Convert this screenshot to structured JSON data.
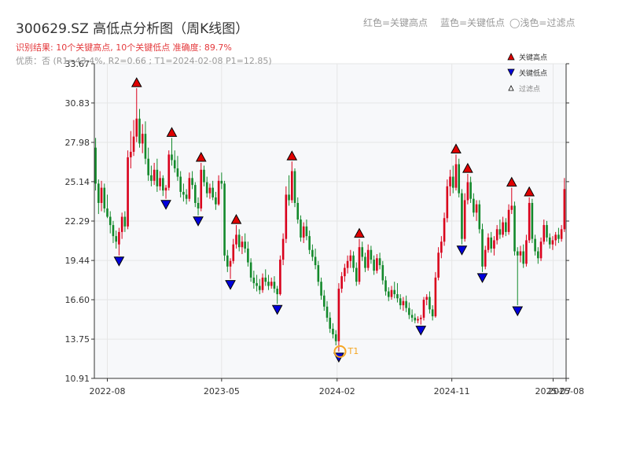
{
  "header": {
    "title": "300629.SZ 高低点分析图（周K线图）",
    "legend_red": "红色=关键高点",
    "legend_blue": "蓝色=关键低点",
    "legend_filtered": "◯浅色=过滤点",
    "result_text": "识别结果: 10个关键高点, 10个关键低点  准确度: 89.7%",
    "quality_text": "优质：否  (R1=43.4%, R2=0.66 ; T1=2024-02-08 P1=12.85)"
  },
  "chart_data": {
    "type": "candlestick",
    "ylim": [
      10.91,
      33.67
    ],
    "y_ticks": [
      "10.91",
      "13.75",
      "16.60",
      "19.44",
      "22.29",
      "25.14",
      "27.98",
      "30.83",
      "33.67"
    ],
    "x_range": [
      "2022-07-01",
      "2025-08-01"
    ],
    "x_ticks": [
      {
        "date": "2022-08-01",
        "label": "2022-08"
      },
      {
        "date": "2023-05-01",
        "label": "2023-05"
      },
      {
        "date": "2024-02-01",
        "label": "2024-02"
      },
      {
        "date": "2024-11-01",
        "label": "2024-11"
      },
      {
        "date": "2025-07-01",
        "label": "2025-07"
      },
      {
        "date": "2025-08-01",
        "label": "2025-08"
      }
    ],
    "colors": {
      "up": "#d9001b",
      "down": "#13892b",
      "high_marker": "#e00000",
      "low_marker": "#0000dd",
      "t1": "#f5a623",
      "grid": "#e6e6e6",
      "plot_bg": "#f7f8fa"
    },
    "legend_items": [
      "关键高点",
      "关键低点",
      "过滤点"
    ],
    "key_highs": [
      {
        "date": "2022-10-10",
        "price": 31.9
      },
      {
        "date": "2023-01-02",
        "price": 28.3
      },
      {
        "date": "2023-03-13",
        "price": 26.5
      },
      {
        "date": "2023-06-05",
        "price": 22.0
      },
      {
        "date": "2023-10-16",
        "price": 26.6
      },
      {
        "date": "2024-03-25",
        "price": 21.0
      },
      {
        "date": "2024-11-11",
        "price": 27.1
      },
      {
        "date": "2024-12-09",
        "price": 25.7
      },
      {
        "date": "2025-03-24",
        "price": 24.7
      },
      {
        "date": "2025-05-05",
        "price": 24.0
      }
    ],
    "key_lows": [
      {
        "date": "2022-08-29",
        "price": 19.8
      },
      {
        "date": "2022-12-19",
        "price": 23.9
      },
      {
        "date": "2023-03-06",
        "price": 22.7
      },
      {
        "date": "2023-05-22",
        "price": 18.1
      },
      {
        "date": "2023-09-11",
        "price": 16.3
      },
      {
        "date": "2024-02-05",
        "price": 12.85
      },
      {
        "date": "2024-08-19",
        "price": 14.8
      },
      {
        "date": "2024-11-25",
        "price": 20.6
      },
      {
        "date": "2025-01-13",
        "price": 18.6
      },
      {
        "date": "2025-04-07",
        "price": 16.2
      }
    ],
    "t1": {
      "date": "2024-02-08",
      "price": 12.85,
      "label": "T1"
    },
    "ohlc": [
      [
        "2022-07-04",
        27.6,
        28.3,
        24.5,
        25.0
      ],
      [
        "2022-07-11",
        25.0,
        25.3,
        22.8,
        23.6
      ],
      [
        "2022-07-18",
        23.6,
        25.2,
        23.0,
        24.7
      ],
      [
        "2022-07-25",
        24.7,
        25.0,
        22.9,
        23.2
      ],
      [
        "2022-08-01",
        23.2,
        24.2,
        22.5,
        22.6
      ],
      [
        "2022-08-08",
        22.6,
        23.0,
        21.4,
        22.0
      ],
      [
        "2022-08-15",
        22.0,
        22.3,
        20.7,
        21.2
      ],
      [
        "2022-08-22",
        21.2,
        21.6,
        20.3,
        20.8
      ],
      [
        "2022-08-29",
        20.6,
        21.8,
        19.8,
        21.5
      ],
      [
        "2022-09-05",
        21.5,
        22.9,
        21.0,
        22.6
      ],
      [
        "2022-09-12",
        22.6,
        23.0,
        21.5,
        21.9
      ],
      [
        "2022-09-19",
        21.9,
        27.4,
        21.7,
        26.9
      ],
      [
        "2022-09-26",
        26.9,
        28.8,
        26.1,
        27.3
      ],
      [
        "2022-10-03",
        27.3,
        29.6,
        27.0,
        28.4
      ],
      [
        "2022-10-10",
        28.4,
        31.9,
        28.0,
        29.7
      ],
      [
        "2022-10-17",
        29.7,
        30.4,
        27.6,
        27.9
      ],
      [
        "2022-10-24",
        27.9,
        29.3,
        27.2,
        28.6
      ],
      [
        "2022-10-31",
        28.6,
        29.5,
        26.4,
        26.8
      ],
      [
        "2022-11-07",
        26.8,
        27.6,
        25.2,
        25.6
      ],
      [
        "2022-11-14",
        25.6,
        26.3,
        24.8,
        25.2
      ],
      [
        "2022-11-21",
        25.2,
        26.5,
        24.9,
        26.0
      ],
      [
        "2022-11-28",
        26.0,
        26.8,
        24.4,
        24.8
      ],
      [
        "2022-12-05",
        24.8,
        25.9,
        24.5,
        25.4
      ],
      [
        "2022-12-12",
        25.4,
        25.6,
        24.1,
        24.5
      ],
      [
        "2022-12-19",
        24.5,
        24.9,
        23.9,
        24.7
      ],
      [
        "2022-12-26",
        24.7,
        27.4,
        24.5,
        27.1
      ],
      [
        "2023-01-02",
        27.1,
        28.3,
        26.3,
        26.7
      ],
      [
        "2023-01-09",
        26.7,
        27.4,
        25.8,
        26.1
      ],
      [
        "2023-01-16",
        26.1,
        27.0,
        25.2,
        25.5
      ],
      [
        "2023-01-23",
        25.5,
        25.9,
        24.0,
        24.4
      ],
      [
        "2023-01-30",
        24.4,
        25.0,
        23.7,
        24.2
      ],
      [
        "2023-02-06",
        24.2,
        24.6,
        23.5,
        23.9
      ],
      [
        "2023-02-13",
        23.9,
        25.8,
        23.7,
        25.4
      ],
      [
        "2023-02-20",
        25.4,
        25.9,
        24.6,
        24.9
      ],
      [
        "2023-02-27",
        24.9,
        25.1,
        23.3,
        23.6
      ],
      [
        "2023-03-06",
        23.6,
        24.0,
        22.7,
        23.2
      ],
      [
        "2023-03-13",
        23.2,
        26.5,
        23.0,
        26.0
      ],
      [
        "2023-03-20",
        26.0,
        26.3,
        24.8,
        25.1
      ],
      [
        "2023-03-27",
        25.1,
        25.5,
        24.0,
        24.3
      ],
      [
        "2023-04-03",
        24.3,
        25.0,
        23.9,
        24.7
      ],
      [
        "2023-04-10",
        24.7,
        25.2,
        23.8,
        24.0
      ],
      [
        "2023-04-17",
        24.0,
        24.4,
        23.1,
        23.5
      ],
      [
        "2023-04-24",
        23.5,
        25.6,
        23.4,
        25.2
      ],
      [
        "2023-05-01",
        25.2,
        25.8,
        24.6,
        25.0
      ],
      [
        "2023-05-08",
        25.0,
        25.2,
        19.4,
        19.8
      ],
      [
        "2023-05-15",
        19.8,
        20.2,
        18.6,
        19.0
      ],
      [
        "2023-05-22",
        19.0,
        19.6,
        18.1,
        19.4
      ],
      [
        "2023-05-29",
        19.4,
        21.0,
        19.2,
        20.6
      ],
      [
        "2023-06-05",
        20.6,
        22.0,
        20.3,
        21.3
      ],
      [
        "2023-06-12",
        21.3,
        21.7,
        20.1,
        20.4
      ],
      [
        "2023-06-19",
        20.4,
        21.2,
        19.9,
        20.8
      ],
      [
        "2023-06-26",
        20.8,
        21.4,
        20.0,
        20.3
      ],
      [
        "2023-07-03",
        20.3,
        20.8,
        19.0,
        19.3
      ],
      [
        "2023-07-10",
        19.3,
        19.6,
        17.9,
        18.2
      ],
      [
        "2023-07-17",
        18.2,
        18.7,
        17.4,
        17.8
      ],
      [
        "2023-07-24",
        17.8,
        18.4,
        17.2,
        17.6
      ],
      [
        "2023-07-31",
        17.6,
        18.1,
        17.0,
        17.3
      ],
      [
        "2023-08-07",
        17.3,
        18.5,
        17.1,
        18.2
      ],
      [
        "2023-08-14",
        18.2,
        18.8,
        17.6,
        17.9
      ],
      [
        "2023-08-21",
        17.9,
        18.4,
        17.3,
        17.6
      ],
      [
        "2023-08-28",
        17.6,
        18.2,
        17.4,
        17.9
      ],
      [
        "2023-09-04",
        17.9,
        18.3,
        17.1,
        17.4
      ],
      [
        "2023-09-11",
        17.4,
        17.6,
        16.3,
        17.0
      ],
      [
        "2023-09-18",
        17.0,
        19.8,
        16.9,
        19.5
      ],
      [
        "2023-09-25",
        19.5,
        21.4,
        19.1,
        21.0
      ],
      [
        "2023-10-02",
        21.0,
        24.8,
        20.7,
        24.2
      ],
      [
        "2023-10-09",
        24.2,
        25.6,
        23.4,
        23.8
      ],
      [
        "2023-10-16",
        23.8,
        26.6,
        23.6,
        25.9
      ],
      [
        "2023-10-23",
        25.9,
        26.1,
        23.3,
        23.6
      ],
      [
        "2023-10-30",
        23.6,
        24.0,
        22.1,
        22.4
      ],
      [
        "2023-11-06",
        22.4,
        22.7,
        20.8,
        21.1
      ],
      [
        "2023-11-13",
        21.1,
        22.2,
        20.7,
        21.9
      ],
      [
        "2023-11-20",
        21.9,
        22.4,
        20.9,
        21.2
      ],
      [
        "2023-11-27",
        21.2,
        21.6,
        19.9,
        20.2
      ],
      [
        "2023-12-04",
        20.2,
        20.6,
        19.4,
        19.7
      ],
      [
        "2023-12-11",
        19.7,
        20.3,
        18.8,
        19.1
      ],
      [
        "2023-12-18",
        19.1,
        19.4,
        17.6,
        17.9
      ],
      [
        "2023-12-25",
        17.9,
        18.2,
        16.6,
        16.9
      ],
      [
        "2024-01-01",
        16.9,
        17.3,
        15.8,
        16.1
      ],
      [
        "2024-01-08",
        16.1,
        16.5,
        15.0,
        15.3
      ],
      [
        "2024-01-15",
        15.3,
        15.7,
        14.2,
        14.5
      ],
      [
        "2024-01-22",
        14.5,
        14.9,
        13.8,
        14.1
      ],
      [
        "2024-01-29",
        14.1,
        14.4,
        13.3,
        13.6
      ],
      [
        "2024-02-05",
        13.6,
        17.8,
        12.85,
        17.4
      ],
      [
        "2024-02-12",
        17.4,
        18.6,
        17.1,
        18.3
      ],
      [
        "2024-02-19",
        18.3,
        19.2,
        17.9,
        18.9
      ],
      [
        "2024-02-26",
        18.9,
        19.8,
        18.5,
        19.4
      ],
      [
        "2024-03-04",
        19.4,
        20.2,
        18.9,
        19.8
      ],
      [
        "2024-03-11",
        19.8,
        20.1,
        18.6,
        18.9
      ],
      [
        "2024-03-18",
        18.9,
        19.3,
        17.6,
        17.9
      ],
      [
        "2024-03-25",
        17.9,
        21.0,
        17.7,
        20.4
      ],
      [
        "2024-04-01",
        20.4,
        20.8,
        19.4,
        19.7
      ],
      [
        "2024-04-08",
        19.7,
        20.0,
        18.6,
        18.9
      ],
      [
        "2024-04-15",
        18.9,
        20.6,
        18.7,
        20.2
      ],
      [
        "2024-04-22",
        20.2,
        20.5,
        19.2,
        19.5
      ],
      [
        "2024-04-29",
        19.5,
        19.8,
        18.4,
        18.7
      ],
      [
        "2024-05-06",
        18.7,
        19.9,
        18.5,
        19.6
      ],
      [
        "2024-05-13",
        19.6,
        20.0,
        18.8,
        19.1
      ],
      [
        "2024-05-20",
        19.1,
        19.4,
        17.7,
        18.0
      ],
      [
        "2024-05-27",
        18.0,
        18.3,
        16.9,
        17.2
      ],
      [
        "2024-06-03",
        17.2,
        17.5,
        16.5,
        16.8
      ],
      [
        "2024-06-10",
        16.8,
        17.6,
        16.6,
        17.3
      ],
      [
        "2024-06-17",
        17.3,
        17.9,
        16.7,
        17.0
      ],
      [
        "2024-06-24",
        17.0,
        17.8,
        16.4,
        16.7
      ],
      [
        "2024-07-01",
        16.7,
        17.0,
        15.9,
        16.2
      ],
      [
        "2024-07-08",
        16.2,
        16.8,
        15.8,
        16.5
      ],
      [
        "2024-07-15",
        16.5,
        16.9,
        15.7,
        16.0
      ],
      [
        "2024-07-22",
        16.0,
        16.4,
        15.2,
        15.5
      ],
      [
        "2024-07-29",
        15.5,
        15.9,
        15.0,
        15.3
      ],
      [
        "2024-08-05",
        15.3,
        15.6,
        14.9,
        15.1
      ],
      [
        "2024-08-12",
        15.1,
        15.4,
        14.9,
        15.2
      ],
      [
        "2024-08-19",
        15.2,
        15.5,
        14.8,
        15.3
      ],
      [
        "2024-08-26",
        15.3,
        16.8,
        15.1,
        16.6
      ],
      [
        "2024-09-02",
        16.6,
        17.0,
        16.2,
        16.8
      ],
      [
        "2024-09-09",
        16.8,
        17.2,
        15.6,
        15.9
      ],
      [
        "2024-09-16",
        15.9,
        16.2,
        15.1,
        15.4
      ],
      [
        "2024-09-23",
        15.4,
        18.6,
        15.3,
        18.2
      ],
      [
        "2024-09-30",
        18.2,
        20.4,
        18.0,
        20.0
      ],
      [
        "2024-10-07",
        20.0,
        21.2,
        19.6,
        20.8
      ],
      [
        "2024-10-14",
        20.8,
        22.9,
        20.5,
        22.5
      ],
      [
        "2024-10-21",
        22.5,
        25.3,
        22.2,
        24.8
      ],
      [
        "2024-10-28",
        24.8,
        26.0,
        24.1,
        25.5
      ],
      [
        "2024-11-04",
        25.5,
        26.3,
        24.3,
        24.7
      ],
      [
        "2024-11-11",
        24.7,
        27.1,
        24.5,
        26.4
      ],
      [
        "2024-11-18",
        26.4,
        26.8,
        24.0,
        24.3
      ],
      [
        "2024-11-25",
        24.3,
        24.6,
        20.6,
        21.0
      ],
      [
        "2024-12-02",
        21.0,
        24.3,
        20.8,
        23.8
      ],
      [
        "2024-12-09",
        23.8,
        25.7,
        23.5,
        25.1
      ],
      [
        "2024-12-16",
        25.1,
        25.5,
        23.6,
        23.9
      ],
      [
        "2024-12-23",
        23.9,
        24.3,
        22.6,
        22.9
      ],
      [
        "2024-12-30",
        22.9,
        23.8,
        22.3,
        23.5
      ],
      [
        "2025-01-06",
        23.5,
        23.8,
        21.4,
        21.7
      ],
      [
        "2025-01-13",
        21.7,
        22.1,
        18.6,
        19.0
      ],
      [
        "2025-01-20",
        19.0,
        20.5,
        18.8,
        20.2
      ],
      [
        "2025-01-27",
        20.2,
        21.4,
        20.0,
        21.1
      ],
      [
        "2025-02-03",
        21.1,
        21.5,
        20.0,
        20.3
      ],
      [
        "2025-02-10",
        20.3,
        21.2,
        19.8,
        20.9
      ],
      [
        "2025-02-17",
        20.9,
        22.0,
        20.6,
        21.7
      ],
      [
        "2025-02-24",
        21.7,
        22.4,
        21.0,
        21.3
      ],
      [
        "2025-03-03",
        21.3,
        22.6,
        21.1,
        22.2
      ],
      [
        "2025-03-10",
        22.2,
        22.5,
        21.2,
        21.5
      ],
      [
        "2025-03-17",
        21.5,
        23.5,
        21.3,
        23.1
      ],
      [
        "2025-03-24",
        23.1,
        24.7,
        22.8,
        23.4
      ],
      [
        "2025-03-31",
        23.4,
        23.7,
        19.8,
        20.1
      ],
      [
        "2025-04-07",
        20.1,
        20.4,
        16.2,
        19.8
      ],
      [
        "2025-04-14",
        19.8,
        20.5,
        19.3,
        20.1
      ],
      [
        "2025-04-21",
        20.1,
        20.6,
        18.9,
        19.2
      ],
      [
        "2025-04-28",
        19.2,
        21.3,
        19.0,
        20.9
      ],
      [
        "2025-05-05",
        20.9,
        24.0,
        20.7,
        23.6
      ],
      [
        "2025-05-12",
        23.6,
        23.9,
        20.7,
        21.0
      ],
      [
        "2025-05-19",
        21.0,
        21.3,
        19.8,
        20.1
      ],
      [
        "2025-05-26",
        20.1,
        20.4,
        19.2,
        19.6
      ],
      [
        "2025-06-02",
        19.6,
        21.1,
        19.4,
        20.8
      ],
      [
        "2025-06-09",
        20.8,
        22.4,
        20.6,
        22.0
      ],
      [
        "2025-06-16",
        22.0,
        22.3,
        20.8,
        21.1
      ],
      [
        "2025-06-23",
        21.1,
        21.4,
        20.3,
        20.6
      ],
      [
        "2025-06-30",
        20.6,
        21.2,
        20.2,
        20.9
      ],
      [
        "2025-07-07",
        20.9,
        21.5,
        20.5,
        21.3
      ],
      [
        "2025-07-14",
        21.3,
        21.8,
        20.7,
        21.0
      ],
      [
        "2025-07-21",
        21.0,
        22.0,
        20.8,
        21.7
      ],
      [
        "2025-07-28",
        21.7,
        25.4,
        21.5,
        24.6
      ]
    ]
  }
}
